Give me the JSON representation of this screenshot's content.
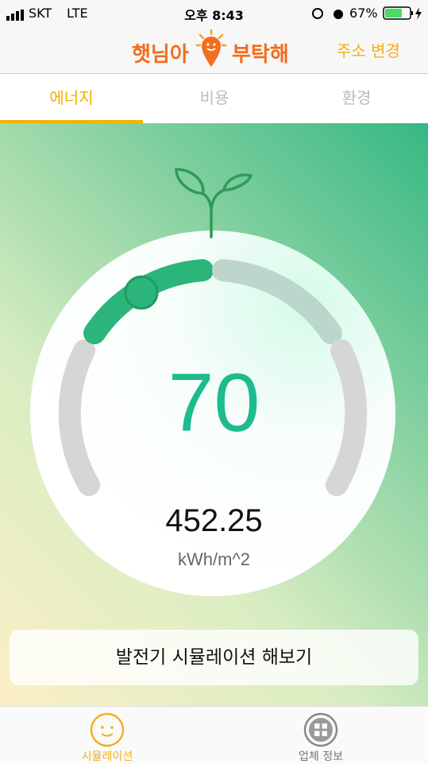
{
  "status_bar": {
    "carrier": "SKT",
    "network": "LTE",
    "time": "오후 8:43",
    "battery": "67%"
  },
  "header": {
    "logo_left": "햇님아",
    "logo_right": "부탁해",
    "action": "주소 변경"
  },
  "tabs": [
    "에너지",
    "비용",
    "환경"
  ],
  "gauge": {
    "score": "70",
    "value": "452.25",
    "unit": "kWh/m^2"
  },
  "button": "발전기 시뮬레이션 해보기",
  "bottom_nav": [
    "시뮬레이션",
    "업체 정보"
  ]
}
